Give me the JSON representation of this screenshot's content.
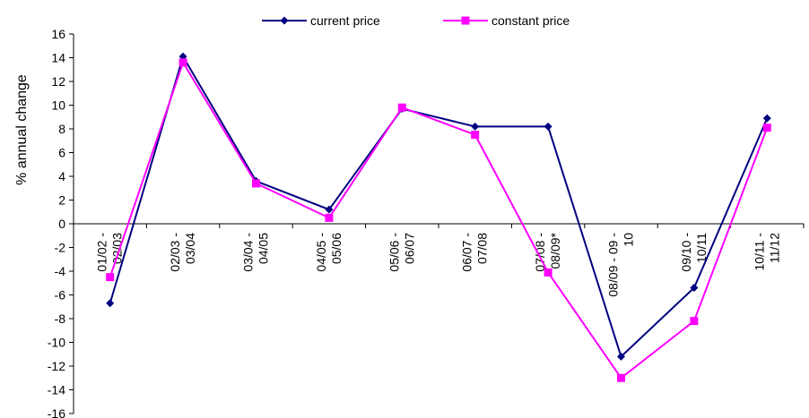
{
  "chart_data": {
    "type": "line",
    "ylabel": "% annual change",
    "ylim": [
      -16,
      16
    ],
    "ytick_step": 2,
    "yticks": [
      "16",
      "14",
      "12",
      "10",
      "8",
      "6",
      "4",
      "2",
      "0",
      "-2",
      "-4",
      "-6",
      "-8",
      "-10",
      "-12",
      "-14",
      "-16"
    ],
    "categories": [
      [
        "01/02 -",
        "02/03"
      ],
      [
        "02/03 -",
        "03/04"
      ],
      [
        "03/04 -",
        "04/05"
      ],
      [
        "04/05 -",
        "05/06"
      ],
      [
        "05/06 -",
        "06/07"
      ],
      [
        "06/07 -",
        "07/08"
      ],
      [
        "07/08 -",
        "08/09*"
      ],
      [
        "08/09 - 09 -",
        "10"
      ],
      [
        "09/10 -",
        "10/11"
      ],
      [
        "10/11 -",
        "11/12"
      ]
    ],
    "legend_position": "top",
    "grid": false,
    "series": [
      {
        "name": "current price",
        "color": "#000080",
        "marker": "diamond",
        "values": [
          -6.7,
          14.1,
          3.6,
          1.2,
          9.7,
          8.2,
          8.2,
          -11.2,
          -5.4,
          8.9
        ]
      },
      {
        "name": "constant price",
        "color": "#FF00FF",
        "marker": "square",
        "values": [
          -4.5,
          13.6,
          3.4,
          0.5,
          9.8,
          7.5,
          -4.1,
          -13.0,
          -8.2,
          8.1
        ]
      }
    ]
  }
}
